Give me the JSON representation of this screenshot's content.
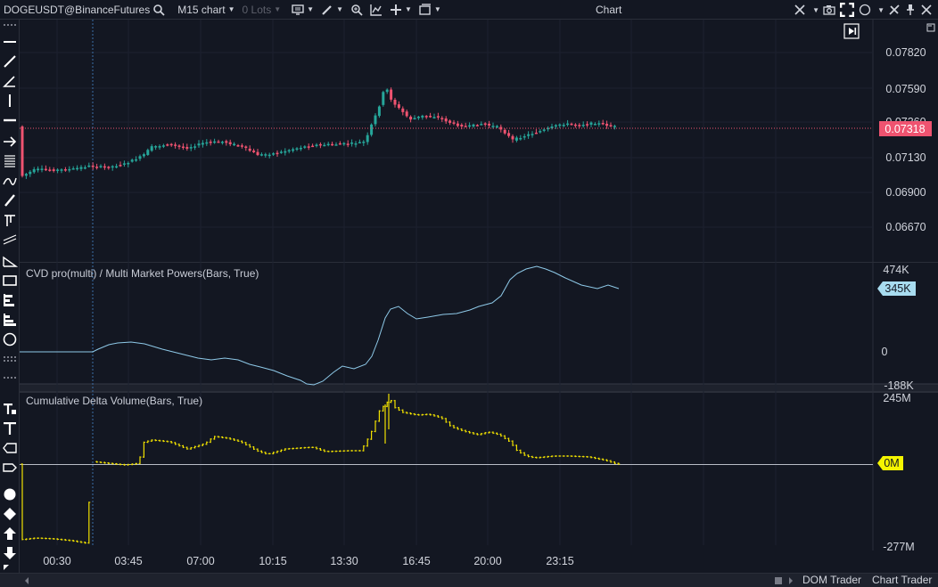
{
  "toolbar": {
    "symbol": "DOGEUSDT@BinanceFutures",
    "timeframe": "M15 chart",
    "lots": "0 Lots",
    "window_title": "Chart"
  },
  "panes": {
    "price": {
      "y_ticks": [
        "0.07820",
        "0.07590",
        "0.07360",
        "0.07130",
        "0.06900",
        "0.06670"
      ],
      "current_price": "0.07318"
    },
    "cvd_pro": {
      "title": "CVD pro(multi) / Multi Market Powers(Bars, True)",
      "y_ticks": [
        "474K",
        "0",
        "-188K"
      ],
      "current_value": "345K"
    },
    "cdv": {
      "title": "Cumulative Delta Volume(Bars, True)",
      "y_ticks": [
        "245M",
        "-277M"
      ],
      "current_value": "0M"
    }
  },
  "time_axis": [
    "00:30",
    "03:45",
    "07:00",
    "10:15",
    "13:30",
    "16:45",
    "20:00",
    "23:15"
  ],
  "colors": {
    "background": "#131722",
    "bull": "#26a69a",
    "bear": "#ef5370",
    "cvd_line": "#8ec9e8",
    "cdv_bars": "#f0e000",
    "price_label": "#ef5370",
    "cvd_label": "#a8dcf0",
    "cdv_label": "#f5f500"
  },
  "bottom": {
    "dom_trader": "DOM Trader",
    "chart_trader": "Chart Trader"
  }
}
